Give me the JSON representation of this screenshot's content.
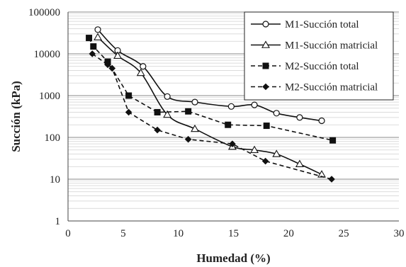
{
  "chart_data": {
    "type": "line",
    "xlabel": "Humedad (%)",
    "ylabel": "Succión (kPa)",
    "xlim": [
      0,
      30
    ],
    "ylim": [
      1,
      100000
    ],
    "yscale": "log",
    "x_ticks": [
      0,
      5,
      10,
      15,
      20,
      25,
      30
    ],
    "x_tick_labels": [
      "0",
      "5",
      "10",
      "15",
      "20",
      "25",
      "30"
    ],
    "y_ticks": [
      1,
      10,
      100,
      1000,
      10000,
      100000
    ],
    "y_tick_labels": [
      "1",
      "10",
      "100",
      "1000",
      "10000",
      "100000"
    ],
    "grid": true,
    "legend_position": "top-right",
    "series": [
      {
        "name": "M1-Succión total",
        "line": "solid",
        "marker": "open-circle",
        "x": [
          2.7,
          4.5,
          6.8,
          9.0,
          11.5,
          14.8,
          16.9,
          18.9,
          21.0,
          23.0
        ],
        "y": [
          38000,
          12000,
          5000,
          950,
          700,
          550,
          600,
          380,
          300,
          250
        ],
        "smooth": true
      },
      {
        "name": "M1-Succión matricial",
        "line": "solid",
        "marker": "open-triangle",
        "x": [
          2.7,
          4.5,
          6.6,
          9.0,
          11.5,
          14.9,
          16.9,
          18.9,
          21.0,
          23.0
        ],
        "y": [
          25000,
          9000,
          3500,
          350,
          160,
          60,
          50,
          40,
          23,
          13
        ],
        "smooth": true
      },
      {
        "name": "M2-Succión total",
        "line": "dashed",
        "marker": "filled-square",
        "x": [
          1.9,
          2.3,
          3.6,
          5.5,
          8.1,
          10.9,
          14.5,
          18.0,
          24.0
        ],
        "y": [
          24000,
          15000,
          6500,
          1000,
          400,
          420,
          200,
          190,
          85
        ],
        "smooth": false
      },
      {
        "name": "M2-Succión matricial",
        "line": "dashed",
        "marker": "filled-diamond",
        "x": [
          2.2,
          3.6,
          4.0,
          5.5,
          8.1,
          10.9,
          14.9,
          17.9,
          23.9
        ],
        "y": [
          10000,
          5500,
          4500,
          400,
          150,
          90,
          70,
          27,
          10
        ],
        "smooth": false
      }
    ]
  }
}
